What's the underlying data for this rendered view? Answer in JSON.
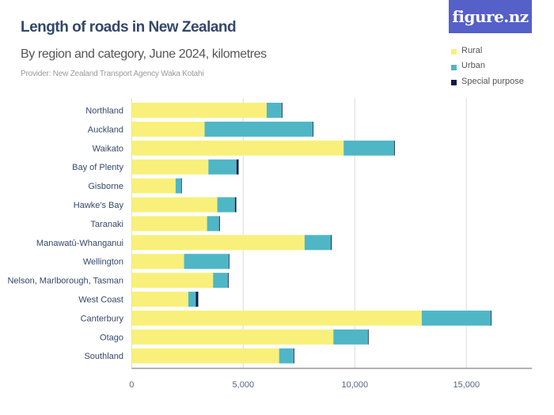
{
  "header": {
    "title": "Length of roads in New Zealand",
    "subtitle": "By region and category, June 2024, kilometres",
    "provider": "Provider: New Zealand Transport Agency Waka Kotahi",
    "logo_text": "figure.nz"
  },
  "colors": {
    "rural": "#f8f07a",
    "urban": "#4fb6c6",
    "special": "#0d1a4a",
    "logo_bg": "#5560c8"
  },
  "chart_data": {
    "type": "bar",
    "orientation": "horizontal",
    "stacked": true,
    "title": "Length of roads in New Zealand",
    "subtitle": "By region and category, June 2024, kilometres",
    "xlim": [
      0,
      18000
    ],
    "xticks": [
      0,
      5000,
      10000,
      15000
    ],
    "xtick_labels": [
      "0",
      "5,000",
      "10,000",
      "15,000"
    ],
    "grid": true,
    "legend_placement": "top-right",
    "categories": [
      "Northland",
      "Auckland",
      "Waikato",
      "Bay of Plenty",
      "Gisborne",
      "Hawke's Bay",
      "Taranaki",
      "Manawatū-Whanganui",
      "Wellington",
      "Nelson, Marlborough, Tasman",
      "West Coast",
      "Canterbury",
      "Otago",
      "Southland"
    ],
    "series": [
      {
        "name": "Rural",
        "values": [
          6050,
          3270,
          9500,
          3440,
          1970,
          3840,
          3380,
          7750,
          2350,
          3650,
          2540,
          13000,
          9040,
          6610
        ]
      },
      {
        "name": "Urban",
        "values": [
          680,
          4850,
          2270,
          1260,
          250,
          790,
          540,
          1180,
          2000,
          670,
          340,
          3100,
          1550,
          650
        ]
      },
      {
        "name": "Special purpose",
        "values": [
          25,
          20,
          25,
          95,
          20,
          60,
          35,
          35,
          25,
          25,
          105,
          25,
          25,
          25
        ]
      }
    ]
  }
}
